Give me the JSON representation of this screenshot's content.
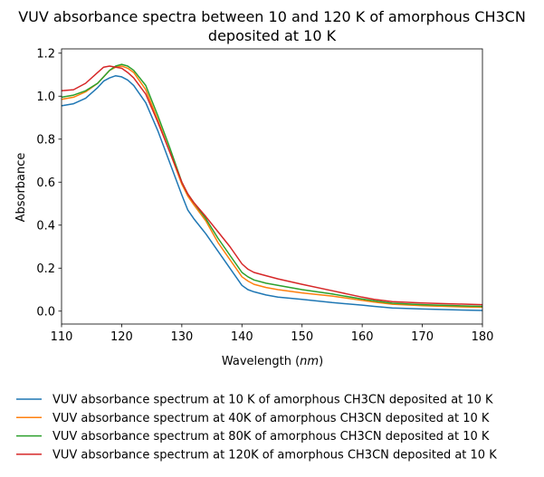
{
  "chart_data": {
    "type": "line",
    "title": "VUV absorbance spectra between 10 and 120 K of amorphous CH3CN",
    "subtitle": "deposited at 10 K",
    "xlabel_prefix": "Wavelength (",
    "xlabel_unit": "nm",
    "xlabel_suffix": ")",
    "ylabel": "Absorbance",
    "xlim": [
      110,
      180
    ],
    "ylim": [
      -0.06,
      1.22
    ],
    "xticks": [
      "110",
      "120",
      "130",
      "140",
      "150",
      "160",
      "170",
      "180"
    ],
    "yticks": [
      "0.0",
      "0.2",
      "0.4",
      "0.6",
      "0.8",
      "1.0",
      "1.2"
    ],
    "grid": false,
    "legend_position": "below",
    "series": [
      {
        "name": "VUV absorbance spectrum at 10 K of amorphous CH3CN deposited at 10 K",
        "color": "#1f77b4",
        "x": [
          110,
          112,
          114,
          116,
          117,
          118,
          119,
          120,
          121,
          122,
          124,
          126,
          128,
          130,
          131,
          132,
          134,
          136,
          138,
          140,
          141,
          142,
          144,
          146,
          150,
          155,
          160,
          162,
          165,
          170,
          175,
          180
        ],
        "y": [
          0.955,
          0.965,
          0.99,
          1.04,
          1.07,
          1.085,
          1.095,
          1.09,
          1.075,
          1.05,
          0.97,
          0.84,
          0.69,
          0.54,
          0.47,
          0.43,
          0.36,
          0.28,
          0.2,
          0.12,
          0.1,
          0.09,
          0.075,
          0.065,
          0.055,
          0.04,
          0.028,
          0.022,
          0.015,
          0.01,
          0.006,
          0.003
        ]
      },
      {
        "name": "VUV absorbance spectrum at 40K of amorphous CH3CN deposited at 10 K",
        "color": "#ff7f0e",
        "x": [
          110,
          112,
          114,
          116,
          117,
          118,
          119,
          120,
          121,
          122,
          124,
          126,
          128,
          130,
          131,
          132,
          134,
          136,
          138,
          140,
          141,
          142,
          144,
          146,
          150,
          155,
          160,
          162,
          165,
          170,
          175,
          180
        ],
        "y": [
          0.985,
          0.995,
          1.02,
          1.06,
          1.09,
          1.12,
          1.135,
          1.14,
          1.13,
          1.11,
          1.03,
          0.89,
          0.74,
          0.59,
          0.535,
          0.495,
          0.42,
          0.32,
          0.24,
          0.16,
          0.14,
          0.125,
          0.11,
          0.1,
          0.085,
          0.07,
          0.05,
          0.042,
          0.032,
          0.025,
          0.021,
          0.018
        ]
      },
      {
        "name": "VUV absorbance spectrum at 80K of amorphous CH3CN deposited at 10 K",
        "color": "#2ca02c",
        "x": [
          110,
          112,
          114,
          116,
          117,
          118,
          119,
          120,
          121,
          122,
          124,
          126,
          128,
          130,
          131,
          132,
          134,
          136,
          138,
          140,
          141,
          142,
          144,
          146,
          150,
          155,
          160,
          162,
          165,
          170,
          175,
          180
        ],
        "y": [
          0.995,
          1.005,
          1.025,
          1.06,
          1.09,
          1.12,
          1.14,
          1.148,
          1.14,
          1.12,
          1.05,
          0.91,
          0.76,
          0.6,
          0.545,
          0.505,
          0.43,
          0.34,
          0.26,
          0.18,
          0.16,
          0.145,
          0.13,
          0.12,
          0.1,
          0.08,
          0.056,
          0.048,
          0.037,
          0.03,
          0.026,
          0.022
        ]
      },
      {
        "name": "VUV absorbance spectrum at 120K of amorphous CH3CN deposited at 10 K",
        "color": "#d62728",
        "x": [
          110,
          112,
          114,
          116,
          117,
          118,
          119,
          120,
          121,
          122,
          124,
          126,
          128,
          130,
          131,
          132,
          134,
          136,
          138,
          140,
          141,
          142,
          144,
          146,
          150,
          155,
          160,
          162,
          165,
          170,
          175,
          180
        ],
        "y": [
          1.025,
          1.03,
          1.06,
          1.11,
          1.135,
          1.14,
          1.135,
          1.13,
          1.11,
          1.085,
          1.01,
          0.88,
          0.74,
          0.6,
          0.545,
          0.505,
          0.44,
          0.37,
          0.3,
          0.22,
          0.195,
          0.18,
          0.165,
          0.15,
          0.125,
          0.095,
          0.065,
          0.055,
          0.044,
          0.038,
          0.034,
          0.03
        ]
      }
    ]
  }
}
